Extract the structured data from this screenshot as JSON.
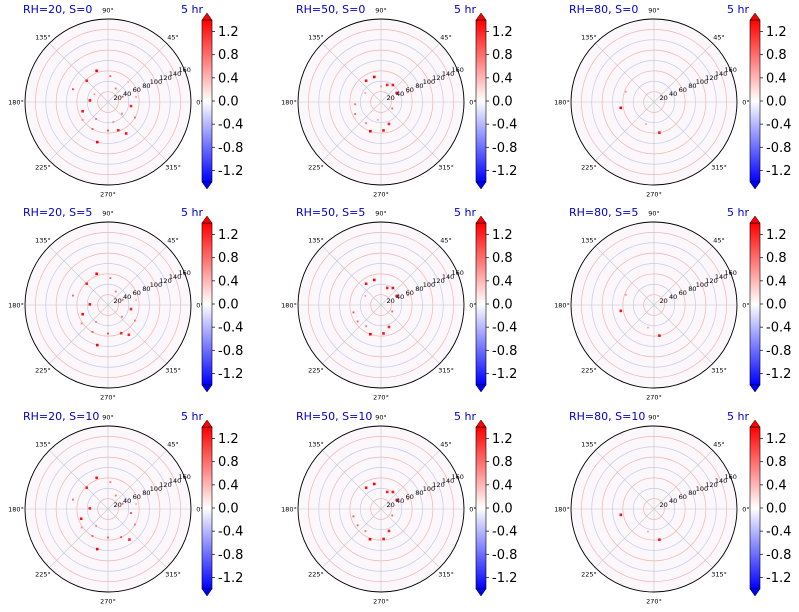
{
  "figure": {
    "time_label": "5 hr",
    "radial_ticks": [
      "20",
      "40",
      "60",
      "80",
      "100",
      "120",
      "140",
      "160"
    ],
    "angle_ticks": [
      "0°",
      "45°",
      "90°",
      "135°",
      "180°",
      "225°",
      "270°",
      "315°"
    ],
    "colorbar": {
      "colormap": "bwr",
      "range": [
        -1.4,
        1.4
      ],
      "tick_labels": [
        "1.2",
        "0.8",
        "0.4",
        "0.0",
        "-0.4",
        "-0.8",
        "-1.2"
      ],
      "extend": "both"
    },
    "colors": {
      "title": "#0000cc",
      "max_positive": "#ff0000",
      "max_negative": "#0000ff",
      "grid": "#b0b0b0"
    }
  },
  "chart_data": [
    {
      "type": "polar-scatter",
      "title": "RH=20, S=0",
      "time": "5 hr",
      "rlim": [
        0,
        160
      ],
      "points": [
        [
          110,
          64,
          1.4
        ],
        [
          135,
          58,
          1.2
        ],
        [
          160,
          72,
          1.1
        ],
        [
          175,
          35,
          1.3
        ],
        [
          200,
          52,
          1.3
        ],
        [
          215,
          60,
          0.7
        ],
        [
          240,
          60,
          1.0
        ],
        [
          255,
          80,
          1.4
        ],
        [
          270,
          55,
          1.1
        ],
        [
          290,
          58,
          1.2
        ],
        [
          300,
          70,
          1.3
        ],
        [
          330,
          60,
          0.9
        ],
        [
          350,
          45,
          1.2
        ],
        [
          20,
          30,
          1.0
        ],
        [
          60,
          30,
          0.8
        ],
        [
          85,
          50,
          0.9
        ],
        [
          150,
          30,
          0.6
        ],
        [
          235,
          40,
          0.8
        ],
        [
          285,
          40,
          0.7
        ],
        [
          320,
          35,
          0.8
        ],
        [
          10,
          55,
          0.5
        ],
        [
          45,
          55,
          0.4
        ]
      ]
    },
    {
      "type": "polar-scatter",
      "title": "RH=50, S=0",
      "time": "5 hr",
      "rlim": [
        0,
        160
      ],
      "points": [
        [
          105,
          50,
          1.4
        ],
        [
          125,
          50,
          1.3
        ],
        [
          70,
          35,
          1.2
        ],
        [
          55,
          40,
          1.3
        ],
        [
          30,
          35,
          1.3
        ],
        [
          250,
          60,
          1.4
        ],
        [
          275,
          55,
          1.3
        ],
        [
          290,
          45,
          1.2
        ],
        [
          185,
          50,
          0.8
        ],
        [
          205,
          55,
          0.9
        ],
        [
          235,
          50,
          0.8
        ],
        [
          330,
          25,
          0.9
        ],
        [
          20,
          55,
          0.8
        ],
        [
          90,
          30,
          0.6
        ],
        [
          150,
          35,
          0.5
        ],
        [
          260,
          35,
          0.5
        ]
      ]
    },
    {
      "type": "polar-scatter",
      "title": "RH=80, S=0",
      "time": "5 hr",
      "rlim": [
        0,
        160
      ],
      "points": [
        [
          190,
          65,
          1.4
        ],
        [
          160,
          58,
          0.6
        ],
        [
          280,
          60,
          1.3
        ],
        [
          250,
          45,
          0.5
        ]
      ]
    },
    {
      "type": "polar-scatter",
      "title": "RH=20, S=5",
      "time": "5 hr",
      "rlim": [
        0,
        160
      ],
      "points": [
        [
          110,
          64,
          1.4
        ],
        [
          135,
          58,
          1.2
        ],
        [
          165,
          70,
          0.9
        ],
        [
          178,
          35,
          1.3
        ],
        [
          200,
          52,
          1.3
        ],
        [
          215,
          62,
          0.7
        ],
        [
          240,
          60,
          1.0
        ],
        [
          255,
          80,
          1.4
        ],
        [
          270,
          55,
          1.1
        ],
        [
          295,
          60,
          1.2
        ],
        [
          305,
          70,
          1.2
        ],
        [
          330,
          60,
          0.8
        ],
        [
          350,
          45,
          1.2
        ],
        [
          20,
          30,
          0.9
        ],
        [
          60,
          30,
          0.8
        ],
        [
          85,
          52,
          0.9
        ],
        [
          235,
          40,
          0.7
        ],
        [
          320,
          35,
          0.8
        ],
        [
          10,
          55,
          0.4
        ]
      ]
    },
    {
      "type": "polar-scatter",
      "title": "RH=50, S=5",
      "time": "5 hr",
      "rlim": [
        0,
        160
      ],
      "points": [
        [
          105,
          50,
          1.4
        ],
        [
          125,
          50,
          1.3
        ],
        [
          70,
          35,
          1.2
        ],
        [
          55,
          40,
          1.3
        ],
        [
          30,
          35,
          1.3
        ],
        [
          250,
          60,
          1.4
        ],
        [
          275,
          55,
          1.3
        ],
        [
          290,
          45,
          1.2
        ],
        [
          195,
          55,
          1.0
        ],
        [
          215,
          55,
          0.9
        ],
        [
          235,
          50,
          0.8
        ],
        [
          330,
          25,
          0.9
        ],
        [
          20,
          55,
          0.8
        ],
        [
          150,
          35,
          0.5
        ]
      ]
    },
    {
      "type": "polar-scatter",
      "title": "RH=80, S=5",
      "time": "5 hr",
      "rlim": [
        0,
        160
      ],
      "points": [
        [
          190,
          65,
          1.3
        ],
        [
          160,
          58,
          0.6
        ],
        [
          280,
          60,
          1.3
        ],
        [
          255,
          45,
          0.5
        ]
      ]
    },
    {
      "type": "polar-scatter",
      "title": "RH=20, S=10",
      "time": "5 hr",
      "rlim": [
        0,
        160
      ],
      "points": [
        [
          110,
          64,
          1.3
        ],
        [
          135,
          58,
          1.2
        ],
        [
          165,
          70,
          0.9
        ],
        [
          178,
          35,
          1.2
        ],
        [
          200,
          55,
          1.3
        ],
        [
          215,
          62,
          0.6
        ],
        [
          240,
          60,
          1.0
        ],
        [
          255,
          80,
          1.4
        ],
        [
          270,
          55,
          1.0
        ],
        [
          295,
          60,
          1.1
        ],
        [
          305,
          72,
          1.2
        ],
        [
          330,
          60,
          0.8
        ],
        [
          350,
          45,
          1.1
        ],
        [
          20,
          30,
          0.9
        ],
        [
          60,
          30,
          0.8
        ],
        [
          85,
          52,
          0.8
        ],
        [
          235,
          40,
          0.7
        ],
        [
          10,
          55,
          0.4
        ]
      ]
    },
    {
      "type": "polar-scatter",
      "title": "RH=50, S=10",
      "time": "5 hr",
      "rlim": [
        0,
        160
      ],
      "points": [
        [
          105,
          50,
          1.4
        ],
        [
          125,
          50,
          1.3
        ],
        [
          70,
          35,
          1.2
        ],
        [
          55,
          40,
          1.3
        ],
        [
          30,
          35,
          1.3
        ],
        [
          250,
          62,
          1.4
        ],
        [
          275,
          58,
          1.3
        ],
        [
          290,
          45,
          1.2
        ],
        [
          195,
          55,
          1.0
        ],
        [
          215,
          55,
          0.9
        ],
        [
          235,
          52,
          0.8
        ],
        [
          330,
          25,
          0.9
        ],
        [
          20,
          55,
          0.8
        ]
      ]
    },
    {
      "type": "polar-scatter",
      "title": "RH=80, S=10",
      "time": "5 hr",
      "rlim": [
        0,
        160
      ],
      "points": [
        [
          190,
          65,
          1.3
        ],
        [
          280,
          60,
          1.3
        ],
        [
          255,
          45,
          0.5
        ]
      ]
    }
  ]
}
